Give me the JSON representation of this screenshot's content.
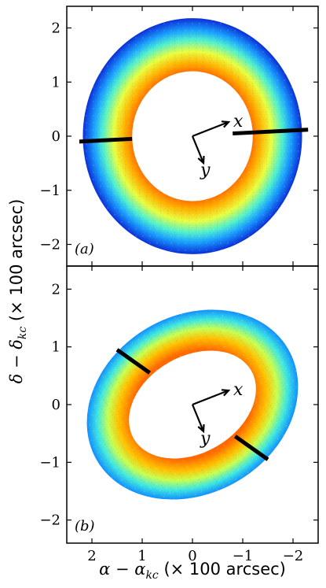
{
  "chart_data": [
    {
      "type": "heatmap",
      "panel_label": "(a)",
      "xlim": [
        2.5,
        -2.5
      ],
      "ylim": [
        -2.4,
        2.4
      ],
      "x_ticks": [
        2,
        1,
        0,
        -1,
        -2
      ],
      "y_ticks": [
        2,
        1,
        0,
        -1,
        -2
      ],
      "x_tick_labels": [
        "2",
        "1",
        "0",
        "−1",
        "−2"
      ],
      "y_tick_labels": [
        "2",
        "1",
        "0",
        "−1",
        "−2"
      ],
      "region": {
        "shape": "annulus",
        "center": [
          0.0,
          0.0
        ],
        "outer_radius": 2.18,
        "inner_radius": 1.2,
        "inner_aspect": 1.0,
        "rotation_deg": 0
      },
      "slits": [
        {
          "from": [
            2.25,
            -0.1
          ],
          "to": [
            1.2,
            -0.05
          ]
        },
        {
          "from": [
            -0.8,
            0.05
          ],
          "to": [
            -2.3,
            0.12
          ]
        }
      ],
      "orientation_vectors": {
        "origin": [
          0.0,
          0.0
        ],
        "labels": [
          "x",
          "y"
        ]
      },
      "colormap": "jet",
      "description_values": {
        "inner_color": "orange",
        "outer_color": "blue"
      }
    },
    {
      "type": "heatmap",
      "panel_label": "(b)",
      "xlim": [
        2.5,
        -2.5
      ],
      "ylim": [
        -2.4,
        2.4
      ],
      "x_ticks": [
        2,
        1,
        0,
        -1,
        -2
      ],
      "y_ticks": [
        2,
        1,
        0,
        -1,
        -2
      ],
      "x_tick_labels": [
        "2",
        "1",
        "0",
        "−1",
        "−2"
      ],
      "y_tick_labels": [
        "2",
        "1",
        "0",
        "−1",
        "−2"
      ],
      "region": {
        "shape": "elliptical_annulus",
        "center": [
          0.0,
          0.0
        ],
        "outer_radius": 2.2,
        "inner_radius": 1.35,
        "inner_aspect": 0.62,
        "outer_aspect": 0.7,
        "rotation_deg": 30
      },
      "slits": [
        {
          "from": [
            1.5,
            0.95
          ],
          "to": [
            0.85,
            0.55
          ]
        },
        {
          "from": [
            -0.85,
            -0.55
          ],
          "to": [
            -1.5,
            -0.95
          ]
        }
      ],
      "orientation_vectors": {
        "origin": [
          0.0,
          0.0
        ],
        "labels": [
          "x",
          "y"
        ]
      },
      "colormap": "jet"
    }
  ],
  "axes": {
    "ylabel": "δ − δ_kc (× 100 arcsec)",
    "ylabel_prefix": "δ − δ",
    "ylabel_sub": "kc",
    "ylabel_suffix": " (× 100 arcsec)",
    "xlabel": "α − α_kc (× 100 arcsec)",
    "xlabel_prefix": "α − α",
    "xlabel_sub": "kc",
    "xlabel_suffix": " (× 100 arcsec)"
  },
  "colors": {
    "colormap_stops": [
      "#ff3a00",
      "#ff9a00",
      "#ffe000",
      "#9fff60",
      "#1fe0ff",
      "#1a80ff",
      "#0a2acc"
    ]
  }
}
